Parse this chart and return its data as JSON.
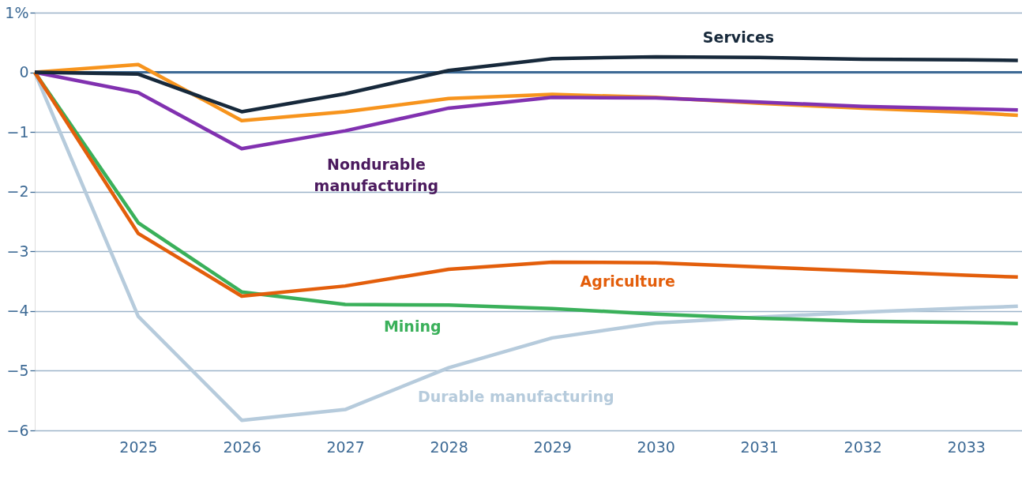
{
  "chart_data": {
    "type": "line",
    "x": [
      2024,
      2025,
      2026,
      2027,
      2028,
      2029,
      2030,
      2031,
      2032,
      2033,
      2033.5
    ],
    "series": [
      {
        "name": "Durable manufacturing",
        "color": "#b6cbdc",
        "values": [
          0,
          -4.09,
          -5.83,
          -5.65,
          -4.95,
          -4.45,
          -4.2,
          -4.1,
          -4.02,
          -3.95,
          -3.92
        ]
      },
      {
        "name": null,
        "color": "#f7941d",
        "values": [
          0,
          0.13,
          -0.81,
          -0.66,
          -0.44,
          -0.37,
          -0.42,
          -0.52,
          -0.6,
          -0.67,
          -0.72
        ]
      },
      {
        "name": "Nondurable manufacturing",
        "color": "#8131b0",
        "values": [
          0,
          -0.34,
          -1.28,
          -0.98,
          -0.6,
          -0.42,
          -0.43,
          -0.5,
          -0.57,
          -0.61,
          -0.63
        ]
      },
      {
        "name": "Mining",
        "color": "#3ab05a",
        "values": [
          0,
          -2.52,
          -3.68,
          -3.89,
          -3.9,
          -3.96,
          -4.05,
          -4.12,
          -4.17,
          -4.19,
          -4.21
        ]
      },
      {
        "name": "Agriculture",
        "color": "#e35e0b",
        "values": [
          0,
          -2.7,
          -3.75,
          -3.58,
          -3.3,
          -3.18,
          -3.19,
          -3.26,
          -3.33,
          -3.4,
          -3.43
        ]
      },
      {
        "name": "Services",
        "color": "#17293b",
        "values": [
          0,
          -0.03,
          -0.66,
          -0.36,
          0.03,
          0.23,
          0.26,
          0.25,
          0.22,
          0.21,
          0.2
        ]
      }
    ],
    "xlim": [
      2024,
      2033.54
    ],
    "xticks": [
      2025,
      2026,
      2027,
      2028,
      2029,
      2030,
      2031,
      2032,
      2033
    ],
    "ylim": [
      -6,
      1
    ],
    "yticks": [
      {
        "value": 1,
        "label": "1%"
      },
      0,
      {
        "value": -1,
        "label": "−1"
      },
      {
        "value": -2,
        "label": "−2"
      },
      {
        "value": -3,
        "label": "−3"
      },
      {
        "value": -4,
        "label": "−4"
      },
      {
        "value": -5,
        "label": "−5"
      },
      {
        "value": -6,
        "label": "−6"
      }
    ],
    "ref_lines": [
      {
        "axis": "y",
        "value": 0,
        "color": "#3d6a95"
      }
    ],
    "grid": "y",
    "marker": "none",
    "line_style": "solid"
  }
}
